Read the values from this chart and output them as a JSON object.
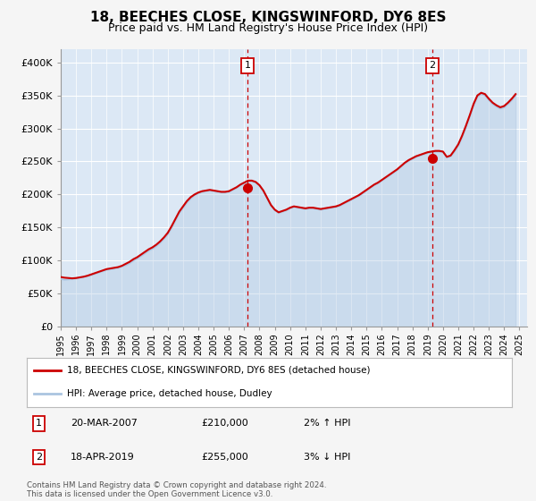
{
  "title": "18, BEECHES CLOSE, KINGSWINFORD, DY6 8ES",
  "subtitle": "Price paid vs. HM Land Registry's House Price Index (HPI)",
  "title_fontsize": 11,
  "subtitle_fontsize": 9,
  "hpi_color": "#aac4e0",
  "price_color": "#cc0000",
  "marker_color": "#cc0000",
  "fig_bg": "#f5f5f5",
  "plot_bg": "#dce8f5",
  "grid_color": "#ffffff",
  "ylim": [
    0,
    420000
  ],
  "yticks": [
    0,
    50000,
    100000,
    150000,
    200000,
    250000,
    300000,
    350000,
    400000
  ],
  "ytick_labels": [
    "£0",
    "£50K",
    "£100K",
    "£150K",
    "£200K",
    "£250K",
    "£300K",
    "£350K",
    "£400K"
  ],
  "xlim_start": 1995.0,
  "xlim_end": 2025.5,
  "sale1_x": 2007.22,
  "sale1_y": 210000,
  "sale1_label": "1",
  "sale2_x": 2019.29,
  "sale2_y": 255000,
  "sale2_label": "2",
  "annotation1_date": "20-MAR-2007",
  "annotation1_price": "£210,000",
  "annotation1_hpi": "2% ↑ HPI",
  "annotation2_date": "18-APR-2019",
  "annotation2_price": "£255,000",
  "annotation2_hpi": "3% ↓ HPI",
  "legend_label1": "18, BEECHES CLOSE, KINGSWINFORD, DY6 8ES (detached house)",
  "legend_label2": "HPI: Average price, detached house, Dudley",
  "footer": "Contains HM Land Registry data © Crown copyright and database right 2024.\nThis data is licensed under the Open Government Licence v3.0.",
  "hpi_years": [
    1995.0,
    1995.25,
    1995.5,
    1995.75,
    1996.0,
    1996.25,
    1996.5,
    1996.75,
    1997.0,
    1997.25,
    1997.5,
    1997.75,
    1998.0,
    1998.25,
    1998.5,
    1998.75,
    1999.0,
    1999.25,
    1999.5,
    1999.75,
    2000.0,
    2000.25,
    2000.5,
    2000.75,
    2001.0,
    2001.25,
    2001.5,
    2001.75,
    2002.0,
    2002.25,
    2002.5,
    2002.75,
    2003.0,
    2003.25,
    2003.5,
    2003.75,
    2004.0,
    2004.25,
    2004.5,
    2004.75,
    2005.0,
    2005.25,
    2005.5,
    2005.75,
    2006.0,
    2006.25,
    2006.5,
    2006.75,
    2007.0,
    2007.25,
    2007.5,
    2007.75,
    2008.0,
    2008.25,
    2008.5,
    2008.75,
    2009.0,
    2009.25,
    2009.5,
    2009.75,
    2010.0,
    2010.25,
    2010.5,
    2010.75,
    2011.0,
    2011.25,
    2011.5,
    2011.75,
    2012.0,
    2012.25,
    2012.5,
    2012.75,
    2013.0,
    2013.25,
    2013.5,
    2013.75,
    2014.0,
    2014.25,
    2014.5,
    2014.75,
    2015.0,
    2015.25,
    2015.5,
    2015.75,
    2016.0,
    2016.25,
    2016.5,
    2016.75,
    2017.0,
    2017.25,
    2017.5,
    2017.75,
    2018.0,
    2018.25,
    2018.5,
    2018.75,
    2019.0,
    2019.25,
    2019.5,
    2019.75,
    2020.0,
    2020.25,
    2020.5,
    2020.75,
    2021.0,
    2021.25,
    2021.5,
    2021.75,
    2022.0,
    2022.25,
    2022.5,
    2022.75,
    2023.0,
    2023.25,
    2023.5,
    2023.75,
    2024.0,
    2024.25,
    2024.5,
    2024.75
  ],
  "hpi_values": [
    72000,
    71000,
    71500,
    72000,
    73000,
    74000,
    75000,
    76500,
    78000,
    80000,
    82000,
    84000,
    86000,
    87000,
    88000,
    89000,
    91000,
    93000,
    96000,
    100000,
    103000,
    107000,
    111000,
    115000,
    118000,
    122000,
    127000,
    133000,
    140000,
    150000,
    161000,
    172000,
    180000,
    188000,
    194000,
    199000,
    202000,
    204000,
    205000,
    206000,
    205000,
    204000,
    203000,
    203000,
    204000,
    207000,
    210000,
    214000,
    217000,
    220000,
    220000,
    218000,
    213000,
    205000,
    194000,
    183000,
    176000,
    172000,
    174000,
    176000,
    179000,
    181000,
    180000,
    179000,
    178000,
    179000,
    179000,
    178000,
    177000,
    178000,
    179000,
    180000,
    181000,
    183000,
    186000,
    189000,
    192000,
    195000,
    198000,
    202000,
    206000,
    210000,
    214000,
    217000,
    221000,
    225000,
    229000,
    233000,
    237000,
    242000,
    247000,
    251000,
    254000,
    257000,
    259000,
    261000,
    263000,
    264000,
    265000,
    265000,
    264000,
    256000,
    258000,
    265000,
    274000,
    287000,
    302000,
    318000,
    335000,
    348000,
    352000,
    350000,
    343000,
    337000,
    333000,
    330000,
    332000,
    337000,
    343000,
    350000
  ],
  "price_years": [
    1995.0,
    1995.25,
    1995.5,
    1995.75,
    1996.0,
    1996.25,
    1996.5,
    1996.75,
    1997.0,
    1997.25,
    1997.5,
    1997.75,
    1998.0,
    1998.25,
    1998.5,
    1998.75,
    1999.0,
    1999.25,
    1999.5,
    1999.75,
    2000.0,
    2000.25,
    2000.5,
    2000.75,
    2001.0,
    2001.25,
    2001.5,
    2001.75,
    2002.0,
    2002.25,
    2002.5,
    2002.75,
    2003.0,
    2003.25,
    2003.5,
    2003.75,
    2004.0,
    2004.25,
    2004.5,
    2004.75,
    2005.0,
    2005.25,
    2005.5,
    2005.75,
    2006.0,
    2006.25,
    2006.5,
    2006.75,
    2007.0,
    2007.25,
    2007.5,
    2007.75,
    2008.0,
    2008.25,
    2008.5,
    2008.75,
    2009.0,
    2009.25,
    2009.5,
    2009.75,
    2010.0,
    2010.25,
    2010.5,
    2010.75,
    2011.0,
    2011.25,
    2011.5,
    2011.75,
    2012.0,
    2012.25,
    2012.5,
    2012.75,
    2013.0,
    2013.25,
    2013.5,
    2013.75,
    2014.0,
    2014.25,
    2014.5,
    2014.75,
    2015.0,
    2015.25,
    2015.5,
    2015.75,
    2016.0,
    2016.25,
    2016.5,
    2016.75,
    2017.0,
    2017.25,
    2017.5,
    2017.75,
    2018.0,
    2018.25,
    2018.5,
    2018.75,
    2019.0,
    2019.25,
    2019.5,
    2019.75,
    2020.0,
    2020.25,
    2020.5,
    2020.75,
    2021.0,
    2021.25,
    2021.5,
    2021.75,
    2022.0,
    2022.25,
    2022.5,
    2022.75,
    2023.0,
    2023.25,
    2023.5,
    2023.75,
    2024.0,
    2024.25,
    2024.5,
    2024.75
  ],
  "price_values": [
    75000,
    74000,
    73500,
    73000,
    73500,
    74500,
    75500,
    77000,
    79000,
    81000,
    83000,
    85000,
    87000,
    88000,
    89000,
    90000,
    92000,
    95000,
    98000,
    102000,
    105000,
    109000,
    113000,
    117000,
    120000,
    124000,
    129000,
    135000,
    142000,
    152000,
    163000,
    174000,
    182000,
    190000,
    196000,
    200000,
    203000,
    205000,
    206000,
    207000,
    206000,
    205000,
    204000,
    204000,
    205000,
    208000,
    211000,
    215000,
    218000,
    221000,
    221000,
    219000,
    214000,
    206000,
    195000,
    184000,
    177000,
    173000,
    175000,
    177000,
    180000,
    182000,
    181000,
    180000,
    179000,
    180000,
    180000,
    179000,
    178000,
    179000,
    180000,
    181000,
    182000,
    184000,
    187000,
    190000,
    193000,
    196000,
    199000,
    203000,
    207000,
    211000,
    215000,
    218000,
    222000,
    226000,
    230000,
    234000,
    238000,
    243000,
    248000,
    252000,
    255000,
    258000,
    260000,
    262000,
    264000,
    265000,
    266000,
    266000,
    265000,
    257000,
    259000,
    267000,
    276000,
    289000,
    304000,
    320000,
    337000,
    350000,
    354000,
    352000,
    345000,
    339000,
    335000,
    332000,
    334000,
    339000,
    345000,
    352000
  ]
}
